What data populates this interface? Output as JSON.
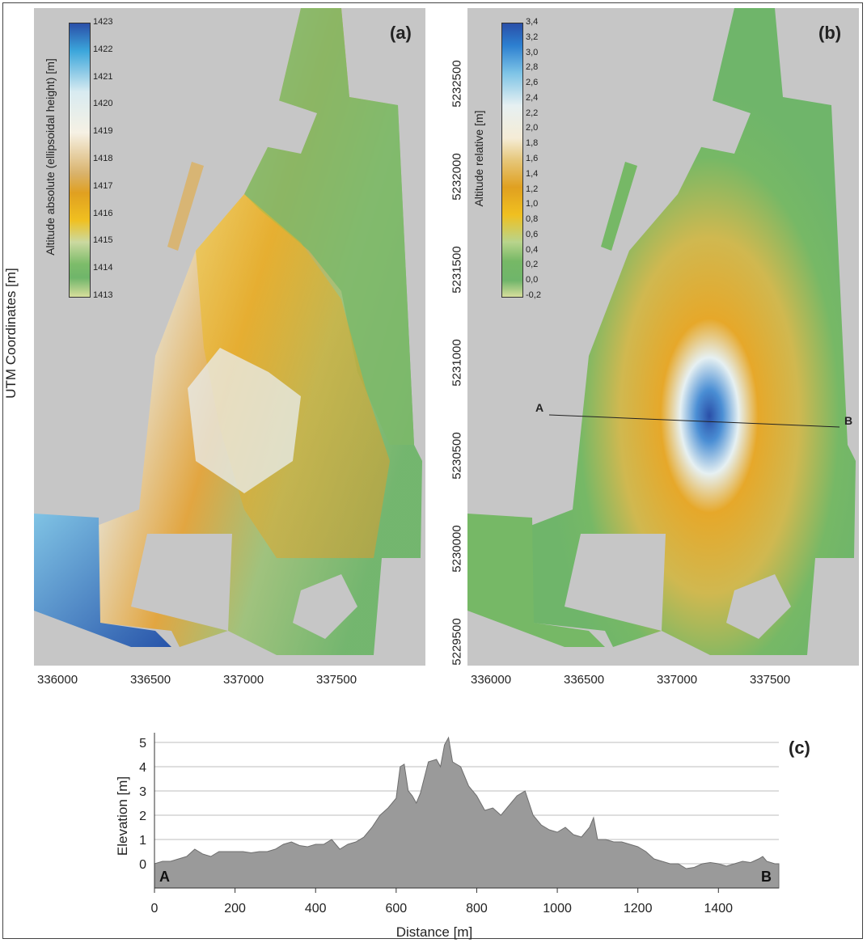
{
  "panels": {
    "a": {
      "label": "(a)",
      "colorbar": {
        "title": "Altitude absolute (ellipsoidal height) [m]",
        "ticks": [
          "1423",
          "1422",
          "1421",
          "1420",
          "1419",
          "1418",
          "1417",
          "1416",
          "1415",
          "1414",
          "1413"
        ]
      }
    },
    "b": {
      "label": "(b)",
      "colorbar": {
        "title": "Altitude relative [m]",
        "ticks": [
          "3,4",
          "3,2",
          "3,0",
          "2,8",
          "2,6",
          "2,4",
          "2,2",
          "2,0",
          "1,8",
          "1,6",
          "1,4",
          "1,2",
          "1,0",
          "0,8",
          "0,6",
          "0,4",
          "0,2",
          "0,0",
          "-0,2"
        ]
      },
      "profile_start": "A",
      "profile_end": "B"
    },
    "c": {
      "label": "(c)"
    }
  },
  "map_axes": {
    "ylabel": "UTM Coordinates [m]",
    "northing_ticks": [
      "5232500",
      "5232000",
      "5231500",
      "5231000",
      "5230500",
      "5230000",
      "5229500"
    ],
    "easting_ticks": [
      "336000",
      "336500",
      "337000",
      "337500"
    ]
  },
  "colors": {
    "map_background": "#c6c6c6",
    "profile_fill": "#9a9a9a",
    "colorbar_a": [
      "#2a4fa8",
      "#3ba6db",
      "#d8ebf1",
      "#f4ecd8",
      "#d9b26a",
      "#e0a020",
      "#f0c020",
      "#cbd9a0",
      "#7dbc6a",
      "#6fb56a",
      "#d7de9c"
    ],
    "colorbar_b": [
      "#2a4fa8",
      "#2c7fd0",
      "#7cc3e6",
      "#e6f0f2",
      "#f5ecd6",
      "#e6c77a",
      "#e0a020",
      "#f0c020",
      "#b8d48c",
      "#76b866",
      "#6fb56a",
      "#d7de9c"
    ]
  },
  "chart_data": [
    {
      "type": "area",
      "title": "",
      "xlabel": "Distance [m]",
      "ylabel": "Elevation [m]",
      "xlim": [
        0,
        1550
      ],
      "ylim": [
        -1,
        5.2
      ],
      "xticks": [
        0,
        200,
        400,
        600,
        800,
        1000,
        1200,
        1400
      ],
      "yticks": [
        0,
        1,
        2,
        3,
        4,
        5
      ],
      "grid": "horizontal",
      "start_label": "A",
      "end_label": "B",
      "series": [
        {
          "x": [
            0,
            20,
            40,
            60,
            80,
            100,
            120,
            140,
            160,
            180,
            200,
            220,
            240,
            260,
            280,
            300,
            320,
            340,
            360,
            380,
            400,
            420,
            440,
            460,
            480,
            500,
            520,
            540,
            560,
            580,
            600,
            610,
            620,
            630,
            640,
            650,
            660,
            680,
            700,
            710,
            720,
            730,
            740,
            750,
            760,
            780,
            800,
            820,
            840,
            860,
            880,
            900,
            920,
            940,
            960,
            980,
            1000,
            1020,
            1040,
            1060,
            1080,
            1090,
            1100,
            1120,
            1140,
            1160,
            1180,
            1200,
            1220,
            1240,
            1260,
            1280,
            1300,
            1320,
            1340,
            1360,
            1380,
            1400,
            1420,
            1440,
            1460,
            1480,
            1500,
            1510,
            1520,
            1540,
            1550
          ],
          "y": [
            0.0,
            0.1,
            0.1,
            0.2,
            0.3,
            0.6,
            0.4,
            0.3,
            0.5,
            0.5,
            0.5,
            0.5,
            0.45,
            0.5,
            0.5,
            0.6,
            0.8,
            0.9,
            0.75,
            0.7,
            0.8,
            0.8,
            1.0,
            0.6,
            0.8,
            0.9,
            1.1,
            1.5,
            2.0,
            2.3,
            2.7,
            4.0,
            4.1,
            3.0,
            2.8,
            2.5,
            2.9,
            4.2,
            4.3,
            4.0,
            4.9,
            5.2,
            4.2,
            4.1,
            4.0,
            3.2,
            2.8,
            2.2,
            2.3,
            2.0,
            2.4,
            2.8,
            3.0,
            2.0,
            1.6,
            1.4,
            1.3,
            1.5,
            1.2,
            1.1,
            1.5,
            1.9,
            1.0,
            1.0,
            0.9,
            0.9,
            0.8,
            0.7,
            0.5,
            0.2,
            0.1,
            0.0,
            0.0,
            -0.2,
            -0.15,
            0.0,
            0.05,
            0.0,
            -0.1,
            0.0,
            0.1,
            0.05,
            0.2,
            0.3,
            0.1,
            0.0,
            0.0
          ]
        }
      ]
    }
  ]
}
